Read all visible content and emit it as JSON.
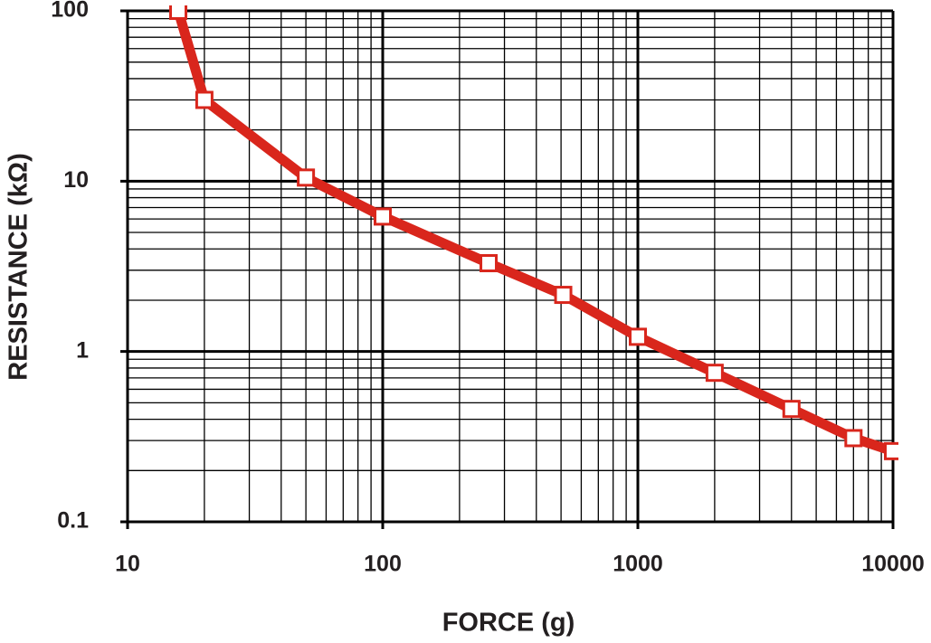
{
  "chart_data": {
    "type": "line",
    "x_label": "FORCE (g)",
    "y_label": "RESISTANCE (kΩ)",
    "x_log": true,
    "y_log": true,
    "grid": true,
    "xlim": [
      10,
      10000
    ],
    "ylim": [
      0.1,
      100
    ],
    "xticks": [
      10,
      100,
      1000,
      10000
    ],
    "yticks": [
      0.1,
      1,
      10,
      100
    ],
    "xminor": [
      20,
      30,
      40,
      50,
      60,
      70,
      80,
      90,
      200,
      300,
      400,
      500,
      600,
      700,
      800,
      900,
      2000,
      3000,
      4000,
      5000,
      6000,
      7000,
      8000,
      9000
    ],
    "yminor": [
      0.2,
      0.3,
      0.4,
      0.5,
      0.6,
      0.7,
      0.8,
      0.9,
      2,
      3,
      4,
      5,
      6,
      7,
      8,
      9,
      20,
      30,
      40,
      50,
      60,
      70,
      80,
      90
    ],
    "x": [
      15.8,
      20,
      50,
      100,
      260,
      510,
      1000,
      2000,
      4000,
      7000,
      10000
    ],
    "series": [
      {
        "color": "#d9261c",
        "marker": "square",
        "values": [
          100,
          30,
          10.5,
          6.2,
          3.3,
          2.15,
          1.22,
          0.75,
          0.46,
          0.31,
          0.26
        ]
      }
    ]
  }
}
